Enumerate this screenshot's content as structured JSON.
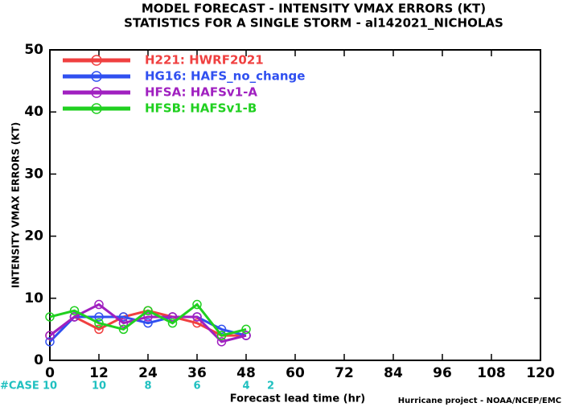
{
  "chart_data": {
    "type": "line",
    "title": "MODEL FORECAST - INTENSITY VMAX ERRORS (KT)",
    "subtitle": "STATISTICS FOR A SINGLE STORM - al142021_NICHOLAS",
    "y_label": "INTENSITY VMAX ERRORS (KT)",
    "x_label": "Forecast lead time (hr)",
    "footer": "Hurricane project - NOAA/NCEP/EMC",
    "x": [
      0,
      6,
      12,
      18,
      24,
      30,
      36,
      42,
      48
    ],
    "series": [
      {
        "name": "H221: HWRF2021",
        "color": "#f04040",
        "values": [
          4,
          7,
          5,
          7,
          8,
          7,
          6,
          4,
          4
        ]
      },
      {
        "name": "HG16: HAFS_no_change",
        "color": "#3050f0",
        "values": [
          3,
          7,
          7,
          7,
          6,
          7,
          7,
          5,
          4
        ]
      },
      {
        "name": "HFSA: HAFSv1-A",
        "color": "#a020c0",
        "values": [
          4,
          7,
          9,
          6,
          7,
          7,
          7,
          3,
          4
        ]
      },
      {
        "name": "HFSB: HAFSv1-B",
        "color": "#20d020",
        "values": [
          7,
          8,
          6,
          5,
          8,
          6,
          9,
          4,
          5
        ]
      }
    ],
    "cases": {
      "label": "#CASE",
      "color": "#20c0c0",
      "x": [
        0,
        12,
        24,
        36,
        48,
        54
      ],
      "values": [
        10,
        10,
        8,
        6,
        4,
        2
      ]
    },
    "xlim": [
      0,
      120
    ],
    "xticks": [
      0,
      12,
      24,
      36,
      48,
      60,
      72,
      84,
      96,
      108,
      120
    ],
    "ylim": [
      0,
      50
    ],
    "yticks": [
      0,
      10,
      20,
      30,
      40,
      50
    ],
    "legend": "upper left"
  }
}
